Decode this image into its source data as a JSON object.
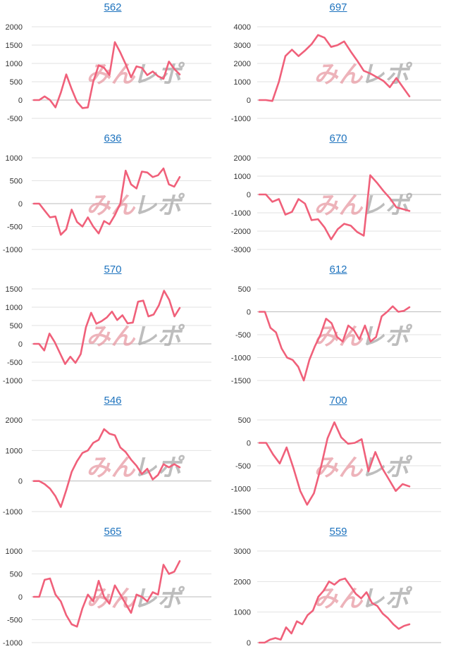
{
  "colors": {
    "line": "#f0607a",
    "grid": "#e2e2e2",
    "axis": "#bbbbbb",
    "title": "#1e73be",
    "watermark_red": "#e89aa4",
    "watermark_gray": "#a8a8a8"
  },
  "watermark": "みんレポ",
  "chart_data": [
    {
      "type": "line",
      "title": "562",
      "ylim": [
        -500,
        2000
      ],
      "yticks": [
        2000,
        1500,
        1000,
        500,
        0,
        -500
      ],
      "values": [
        0,
        0,
        100,
        0,
        -200,
        200,
        700,
        300,
        -50,
        -220,
        -200,
        500,
        950,
        880,
        680,
        1580,
        1300,
        980,
        620,
        920,
        880,
        680,
        780,
        650,
        580,
        1050,
        850,
        700
      ]
    },
    {
      "type": "line",
      "title": "697",
      "ylim": [
        -1000,
        4000
      ],
      "yticks": [
        4000,
        3000,
        2000,
        1000,
        0,
        -1000
      ],
      "values": [
        0,
        0,
        -50,
        1000,
        2400,
        2750,
        2400,
        2700,
        3050,
        3550,
        3400,
        2900,
        3000,
        3200,
        2650,
        2150,
        1600,
        1450,
        1250,
        1050,
        700,
        1200,
        700,
        200
      ]
    },
    {
      "type": "line",
      "title": "636",
      "ylim": [
        -1000,
        1000
      ],
      "yticks": [
        1000,
        500,
        0,
        -500,
        -1000
      ],
      "values": [
        0,
        0,
        -150,
        -300,
        -280,
        -680,
        -560,
        -130,
        -400,
        -500,
        -300,
        -500,
        -650,
        -380,
        -450,
        -250,
        0,
        720,
        420,
        330,
        700,
        680,
        580,
        620,
        770,
        420,
        370,
        580
      ]
    },
    {
      "type": "line",
      "title": "670",
      "ylim": [
        -3000,
        2000
      ],
      "yticks": [
        2000,
        1000,
        0,
        -1000,
        -2000,
        -3000
      ],
      "values": [
        0,
        0,
        -400,
        -250,
        -1100,
        -950,
        -250,
        -500,
        -1400,
        -1350,
        -1800,
        -2450,
        -1900,
        -1600,
        -1700,
        -2050,
        -2250,
        1050,
        650,
        200,
        -200,
        -700,
        -800,
        -900
      ]
    },
    {
      "type": "line",
      "title": "570",
      "ylim": [
        -1000,
        1500
      ],
      "yticks": [
        1500,
        1000,
        500,
        0,
        -500,
        -1000
      ],
      "values": [
        0,
        0,
        -180,
        280,
        50,
        -250,
        -550,
        -350,
        -520,
        -280,
        450,
        850,
        550,
        620,
        720,
        880,
        650,
        780,
        560,
        580,
        1150,
        1180,
        750,
        800,
        1050,
        1450,
        1200,
        750,
        980
      ]
    },
    {
      "type": "line",
      "title": "612",
      "ylim": [
        -1500,
        500
      ],
      "yticks": [
        500,
        0,
        -500,
        -1000,
        -1500
      ],
      "values": [
        0,
        0,
        -350,
        -450,
        -800,
        -1000,
        -1050,
        -1200,
        -1500,
        -1050,
        -750,
        -500,
        -150,
        -250,
        -550,
        -650,
        -300,
        -400,
        -600,
        -300,
        -650,
        -550,
        -100,
        0,
        120,
        0,
        20,
        100
      ]
    },
    {
      "type": "line",
      "title": "546",
      "ylim": [
        -1000,
        2000
      ],
      "yticks": [
        2000,
        1000,
        0,
        -1000
      ],
      "values": [
        0,
        0,
        -100,
        -250,
        -500,
        -850,
        -300,
        300,
        650,
        920,
        1000,
        1250,
        1350,
        1700,
        1550,
        1500,
        1100,
        950,
        700,
        500,
        230,
        400,
        50,
        200,
        550,
        450,
        550,
        450
      ]
    },
    {
      "type": "line",
      "title": "700",
      "ylim": [
        -1500,
        500
      ],
      "yticks": [
        500,
        0,
        -500,
        -1000,
        -1500
      ],
      "values": [
        0,
        0,
        -250,
        -450,
        -100,
        -550,
        -1050,
        -1350,
        -1100,
        -550,
        100,
        450,
        120,
        -20,
        0,
        80,
        -620,
        -200,
        -550,
        -800,
        -1050,
        -900,
        -950
      ]
    },
    {
      "type": "line",
      "title": "565",
      "ylim": [
        -1000,
        1000
      ],
      "yticks": [
        1000,
        500,
        0,
        -500,
        -1000
      ],
      "values": [
        0,
        0,
        370,
        400,
        50,
        -100,
        -400,
        -600,
        -650,
        -250,
        50,
        -100,
        350,
        0,
        -150,
        250,
        50,
        -150,
        -350,
        50,
        0,
        -100,
        100,
        50,
        700,
        500,
        550,
        780
      ]
    },
    {
      "type": "line",
      "title": "559",
      "ylim": [
        0,
        3000
      ],
      "yticks": [
        3000,
        2000,
        1000,
        0
      ],
      "values": [
        0,
        0,
        100,
        150,
        100,
        500,
        300,
        700,
        600,
        900,
        1050,
        1500,
        1700,
        2000,
        1900,
        2050,
        2100,
        1850,
        1600,
        1450,
        1650,
        1300,
        1200,
        950,
        800,
        600,
        450,
        550,
        600
      ]
    }
  ]
}
